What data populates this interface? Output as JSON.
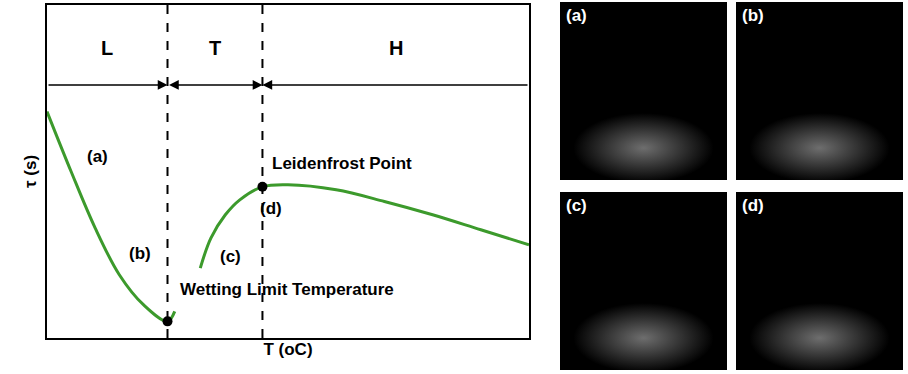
{
  "chart_data": {
    "type": "line",
    "xlabel": "T (oC)",
    "ylabel": "τ (s)",
    "xlim": [
      0,
      100
    ],
    "ylim": [
      0,
      100
    ],
    "xticks": [],
    "yticks": [],
    "tick_labels": false,
    "grid": false,
    "color": "#3c9a2c",
    "x": [
      0,
      5,
      10,
      15,
      20,
      25,
      26.5,
      29,
      31.8,
      34,
      37,
      40,
      44.7,
      50,
      60,
      70,
      80,
      90,
      100
    ],
    "values": [
      68,
      50,
      33,
      19,
      10,
      5,
      8,
      null,
      21,
      30,
      37,
      41.5,
      45.4,
      46,
      44.5,
      41,
      37,
      32.5,
      28
    ],
    "regions": [
      {
        "label": "L",
        "from": 0,
        "to": 25
      },
      {
        "label": "T",
        "from": 25,
        "to": 44.7
      },
      {
        "label": "H",
        "from": 44.7,
        "to": 100
      }
    ],
    "points": [
      {
        "label": "Wetting Limit Temperature",
        "x": 25,
        "y": 5
      },
      {
        "label": "Leidenfrost Point",
        "x": 44.7,
        "y": 45.4
      }
    ],
    "annotations": [
      {
        "text": "(a)",
        "x": 10.4,
        "y": 54.6
      },
      {
        "text": "(b)",
        "x": 19.3,
        "y": 25.4
      },
      {
        "text": "(c)",
        "x": 38,
        "y": 24.5
      },
      {
        "text": "(d)",
        "x": 46.4,
        "y": 38.8
      }
    ],
    "panels": [
      "(a)",
      "(b)",
      "(c)",
      "(d)"
    ]
  }
}
